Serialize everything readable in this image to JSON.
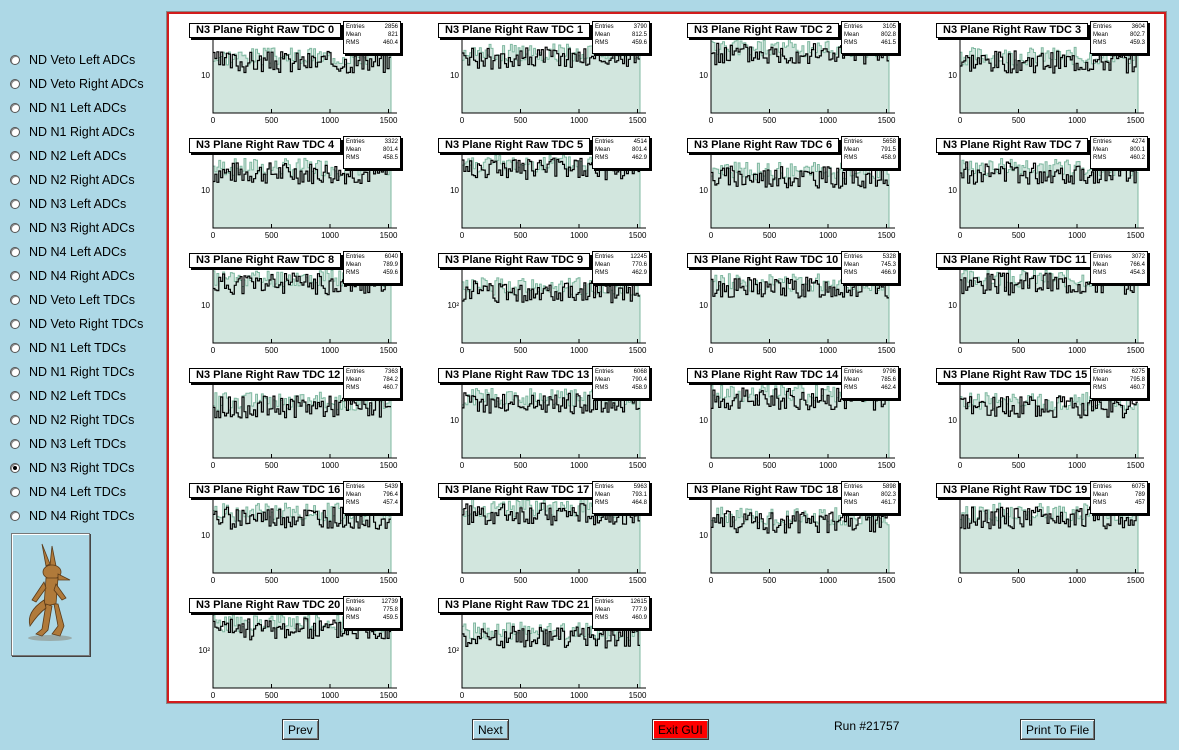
{
  "sidebar": {
    "items": [
      {
        "label": "ND Veto Left ADCs",
        "checked": false
      },
      {
        "label": "ND Veto Right ADCs",
        "checked": false
      },
      {
        "label": "ND N1 Left ADCs",
        "checked": false
      },
      {
        "label": "ND N1 Right ADCs",
        "checked": false
      },
      {
        "label": "ND N2 Left ADCs",
        "checked": false
      },
      {
        "label": "ND N2 Right ADCs",
        "checked": false
      },
      {
        "label": "ND N3 Left ADCs",
        "checked": false
      },
      {
        "label": "ND N3 Right ADCs",
        "checked": false
      },
      {
        "label": "ND N4 Left ADCs",
        "checked": false
      },
      {
        "label": "ND N4 Right ADCs",
        "checked": false
      },
      {
        "label": "ND Veto Left TDCs",
        "checked": false
      },
      {
        "label": "ND Veto Right TDCs",
        "checked": false
      },
      {
        "label": "ND N1 Left TDCs",
        "checked": false
      },
      {
        "label": "ND N1 Right TDCs",
        "checked": false
      },
      {
        "label": "ND N2 Left TDCs",
        "checked": false
      },
      {
        "label": "ND N2 Right TDCs",
        "checked": false
      },
      {
        "label": "ND N3 Left TDCs",
        "checked": false
      },
      {
        "label": "ND N3 Right TDCs",
        "checked": true
      },
      {
        "label": "ND N4 Left TDCs",
        "checked": false
      },
      {
        "label": "ND N4 Right TDCs",
        "checked": false
      }
    ]
  },
  "colors": {
    "background": "#add8e6",
    "frame_border": "#d21c1c",
    "fill_green": "#7fb8a0",
    "line": "#000000",
    "exit_button": "#ff0000"
  },
  "stat_labels": {
    "entries": "Entries",
    "mean": "Mean",
    "rms": "RMS"
  },
  "x_ticks": [
    "0",
    "500",
    "1000",
    "1500"
  ],
  "histograms": [
    {
      "title": "N3 Plane Right Raw TDC 0",
      "entries": "2856",
      "mean": "821",
      "rms": "460.4",
      "ylabel": "10"
    },
    {
      "title": "N3 Plane Right Raw TDC 1",
      "entries": "3790",
      "mean": "812.5",
      "rms": "459.6",
      "ylabel": "10"
    },
    {
      "title": "N3 Plane Right Raw TDC 2",
      "entries": "3105",
      "mean": "802.8",
      "rms": "461.5",
      "ylabel": "10"
    },
    {
      "title": "N3 Plane Right Raw TDC 3",
      "entries": "3604",
      "mean": "802.7",
      "rms": "459.3",
      "ylabel": "10"
    },
    {
      "title": "N3 Plane Right Raw TDC 4",
      "entries": "3322",
      "mean": "801.4",
      "rms": "458.5",
      "ylabel": "10"
    },
    {
      "title": "N3 Plane Right Raw TDC 5",
      "entries": "4514",
      "mean": "801.4",
      "rms": "462.9",
      "ylabel": "10"
    },
    {
      "title": "N3 Plane Right Raw TDC 6",
      "entries": "5658",
      "mean": "791.5",
      "rms": "458.9",
      "ylabel": "10"
    },
    {
      "title": "N3 Plane Right Raw TDC 7",
      "entries": "4274",
      "mean": "800.1",
      "rms": "460.2",
      "ylabel": "10"
    },
    {
      "title": "N3 Plane Right Raw TDC 8",
      "entries": "6040",
      "mean": "789.9",
      "rms": "459.6",
      "ylabel": "10"
    },
    {
      "title": "N3 Plane Right Raw TDC 9",
      "entries": "12245",
      "mean": "770.6",
      "rms": "462.9",
      "ylabel": "10²"
    },
    {
      "title": "N3 Plane Right Raw TDC 10",
      "entries": "5328",
      "mean": "745.3",
      "rms": "466.9",
      "ylabel": "10"
    },
    {
      "title": "N3 Plane Right Raw TDC 11",
      "entries": "3072",
      "mean": "766.4",
      "rms": "454.3",
      "ylabel": "10"
    },
    {
      "title": "N3 Plane Right Raw TDC 12",
      "entries": "7363",
      "mean": "784.2",
      "rms": "460.7",
      "ylabel": ""
    },
    {
      "title": "N3 Plane Right Raw TDC 13",
      "entries": "6068",
      "mean": "790.4",
      "rms": "458.9",
      "ylabel": "10"
    },
    {
      "title": "N3 Plane Right Raw TDC 14",
      "entries": "9796",
      "mean": "785.6",
      "rms": "462.4",
      "ylabel": "10"
    },
    {
      "title": "N3 Plane Right Raw TDC 15",
      "entries": "6275",
      "mean": "795.8",
      "rms": "460.7",
      "ylabel": "10"
    },
    {
      "title": "N3 Plane Right Raw TDC 16",
      "entries": "5439",
      "mean": "796.4",
      "rms": "457.4",
      "ylabel": "10"
    },
    {
      "title": "N3 Plane Right Raw TDC 17",
      "entries": "5963",
      "mean": "793.1",
      "rms": "464.8",
      "ylabel": ""
    },
    {
      "title": "N3 Plane Right Raw TDC 18",
      "entries": "5898",
      "mean": "802.3",
      "rms": "461.7",
      "ylabel": "10"
    },
    {
      "title": "N3 Plane Right Raw TDC 19",
      "entries": "6075",
      "mean": "789",
      "rms": "457",
      "ylabel": ""
    },
    {
      "title": "N3 Plane Right Raw TDC 20",
      "entries": "12739",
      "mean": "775.8",
      "rms": "459.5",
      "ylabel": "10²"
    },
    {
      "title": "N3 Plane Right Raw TDC 21",
      "entries": "12615",
      "mean": "777.9",
      "rms": "460.9",
      "ylabel": "10²"
    }
  ],
  "buttons": {
    "prev": "Prev",
    "next": "Next",
    "exit": "Exit GUI",
    "print": "Print To File"
  },
  "run_label": "Run #21757"
}
